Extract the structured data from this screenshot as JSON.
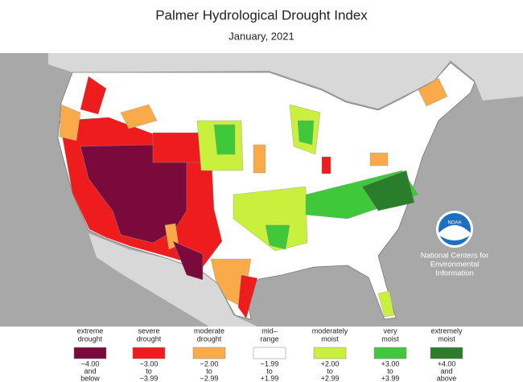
{
  "header": {
    "title": "Palmer Hydrological Drought Index",
    "subtitle": "January, 2021"
  },
  "legend": {
    "items": [
      {
        "label": [
          "extreme",
          "drought"
        ],
        "range": [
          "−4.00",
          "and",
          "below"
        ],
        "color": "#7b0a3c"
      },
      {
        "label": [
          "severe",
          "drought"
        ],
        "range": [
          "−3.00",
          "to",
          "−3.99"
        ],
        "color": "#ee1c1c"
      },
      {
        "label": [
          "moderate",
          "drought"
        ],
        "range": [
          "−2.00",
          "to",
          "−2.99"
        ],
        "color": "#fbaa4a"
      },
      {
        "label": [
          "mid–",
          "range"
        ],
        "range": [
          "−1.99",
          "to",
          "+1.99"
        ],
        "color": "#ffffff"
      },
      {
        "label": [
          "moderately",
          "moist"
        ],
        "range": [
          "+2.00",
          "to",
          "+2.99"
        ],
        "color": "#c8f03c"
      },
      {
        "label": [
          "very",
          "moist"
        ],
        "range": [
          "+3.00",
          "to",
          "+3.99"
        ],
        "color": "#3ec83a"
      },
      {
        "label": [
          "extremely",
          "moist"
        ],
        "range": [
          "+4.00",
          "and",
          "above"
        ],
        "color": "#2a7d2a"
      }
    ]
  },
  "logo": {
    "mark": "NOAA",
    "name": [
      "National Centers for",
      "Environmental",
      "Information"
    ]
  }
}
